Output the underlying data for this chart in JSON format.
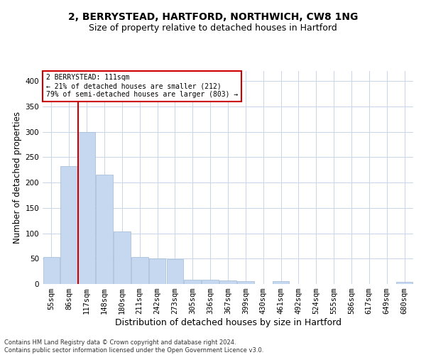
{
  "title": "2, BERRYSTEAD, HARTFORD, NORTHWICH, CW8 1NG",
  "subtitle": "Size of property relative to detached houses in Hartford",
  "xlabel": "Distribution of detached houses by size in Hartford",
  "ylabel": "Number of detached properties",
  "footnote1": "Contains HM Land Registry data © Crown copyright and database right 2024.",
  "footnote2": "Contains public sector information licensed under the Open Government Licence v3.0.",
  "categories": [
    "55sqm",
    "86sqm",
    "117sqm",
    "148sqm",
    "180sqm",
    "211sqm",
    "242sqm",
    "273sqm",
    "305sqm",
    "336sqm",
    "367sqm",
    "399sqm",
    "430sqm",
    "461sqm",
    "492sqm",
    "524sqm",
    "555sqm",
    "586sqm",
    "617sqm",
    "649sqm",
    "680sqm"
  ],
  "values": [
    53,
    233,
    300,
    215,
    103,
    53,
    51,
    49,
    9,
    9,
    7,
    6,
    0,
    5,
    0,
    0,
    0,
    0,
    0,
    0,
    4
  ],
  "bar_color": "#c5d8f0",
  "bar_edge_color": "#a0b8d8",
  "vline_index": 2,
  "vline_color": "#cc0000",
  "annotation_text": "2 BERRYSTEAD: 111sqm\n← 21% of detached houses are smaller (212)\n79% of semi-detached houses are larger (803) →",
  "annotation_box_color": "#cc0000",
  "annotation_text_color": "#000000",
  "ylim": [
    0,
    420
  ],
  "yticks": [
    0,
    50,
    100,
    150,
    200,
    250,
    300,
    350,
    400
  ],
  "background_color": "#ffffff",
  "grid_color": "#c8d4e8",
  "title_fontsize": 10,
  "subtitle_fontsize": 9,
  "axis_label_fontsize": 8.5,
  "tick_fontsize": 7.5,
  "footnote_fontsize": 6
}
